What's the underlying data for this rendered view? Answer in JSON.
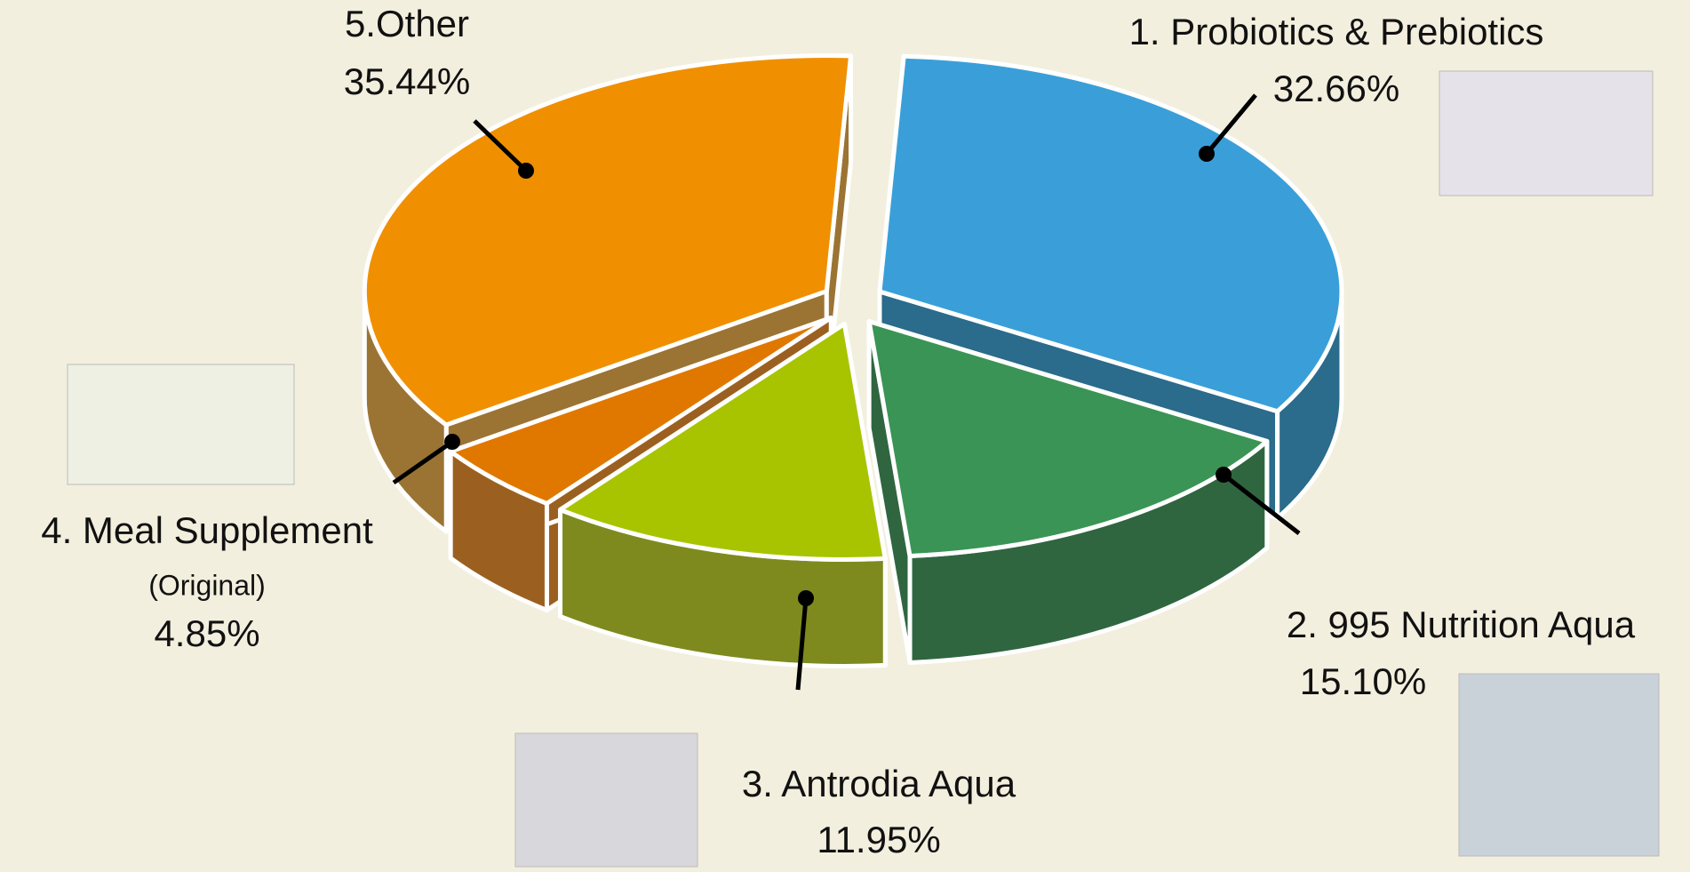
{
  "chart_data": {
    "type": "pie",
    "categories": [
      "1. Probiotics & Prebiotics",
      "2. 995 Nutrition Aqua",
      "3. Antrodia Aqua",
      "4. Meal Supplement",
      "5.Other"
    ],
    "values": [
      32.66,
      15.1,
      11.95,
      4.85,
      35.44
    ],
    "value_labels": [
      "32.66%",
      "15.10%",
      "11.95%",
      "4.85%",
      "35.44%"
    ],
    "colors": [
      "#3a9fd8",
      "#3a9455",
      "#a8c400",
      "#e07800",
      "#f09000"
    ],
    "side_colors": [
      "#2b6b8c",
      "#2f6640",
      "#7f8a1e",
      "#9b6020",
      "#9b7433"
    ],
    "annotations": [
      "(Original)"
    ]
  }
}
